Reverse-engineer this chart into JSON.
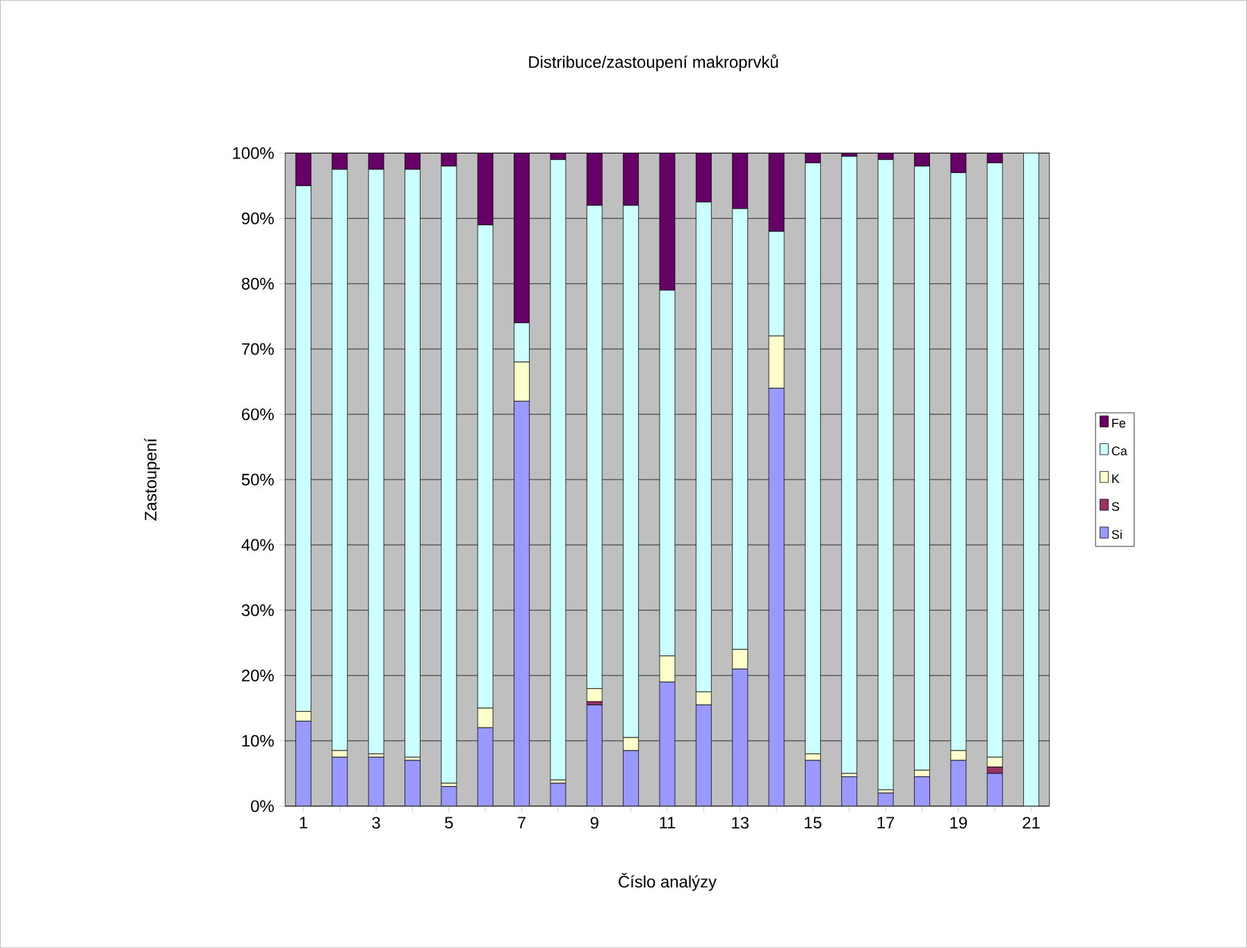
{
  "chart_data": {
    "type": "bar",
    "stacked": true,
    "title": "Distribuce/zastoupení makroprvků",
    "xlabel": "Číslo analýzy",
    "ylabel": "Zastoupení",
    "categories": [
      "1",
      null,
      "3",
      null,
      "5",
      null,
      "7",
      null,
      "9",
      null,
      "11",
      null,
      "13",
      null,
      "15",
      null,
      "17",
      null,
      "19",
      null,
      "21"
    ],
    "series": [
      {
        "name": "Si",
        "color": "#9999ff",
        "values": [
          13,
          7.5,
          7.5,
          7,
          3,
          12,
          62,
          3.5,
          15.5,
          8.5,
          19,
          15.5,
          21,
          64,
          7,
          4.5,
          2,
          4.5,
          7,
          5,
          0
        ]
      },
      {
        "name": "S",
        "color": "#993366",
        "values": [
          0,
          0,
          0,
          0,
          0,
          0,
          0,
          0,
          0.5,
          0,
          0,
          0,
          0,
          0,
          0,
          0,
          0,
          0,
          0,
          1,
          0
        ]
      },
      {
        "name": "K",
        "color": "#ffffcc",
        "values": [
          1.5,
          1,
          0.5,
          0.5,
          0.5,
          3,
          6,
          0.5,
          2,
          2,
          4,
          2,
          3,
          8,
          1,
          0.5,
          0.5,
          1,
          1.5,
          1.5,
          0
        ]
      },
      {
        "name": "Ca",
        "color": "#ccffff",
        "values": [
          80.5,
          89,
          89.5,
          90,
          94.5,
          74,
          6,
          95,
          74,
          81.5,
          56,
          75,
          67.5,
          16,
          90.5,
          94.5,
          96.5,
          92.5,
          88.5,
          91,
          100
        ]
      },
      {
        "name": "Fe",
        "color": "#660066",
        "values": [
          5,
          2.5,
          2.5,
          2.5,
          2,
          11,
          26,
          1,
          8,
          8,
          21,
          7.5,
          8.5,
          12,
          1.5,
          0.5,
          1,
          2,
          3,
          1.5,
          0
        ]
      }
    ],
    "ylim": [
      0,
      100
    ],
    "yticks": [
      {
        "value": 0,
        "label": "0%"
      },
      {
        "value": 10,
        "label": "10%"
      },
      {
        "value": 20,
        "label": "20%"
      },
      {
        "value": 30,
        "label": "30%"
      },
      {
        "value": 40,
        "label": "40%"
      },
      {
        "value": 50,
        "label": "50%"
      },
      {
        "value": 60,
        "label": "60%"
      },
      {
        "value": 70,
        "label": "70%"
      },
      {
        "value": 80,
        "label": "80%"
      },
      {
        "value": 90,
        "label": "90%"
      },
      {
        "value": 100,
        "label": "100%"
      }
    ],
    "grid": "y",
    "legend": "right"
  }
}
